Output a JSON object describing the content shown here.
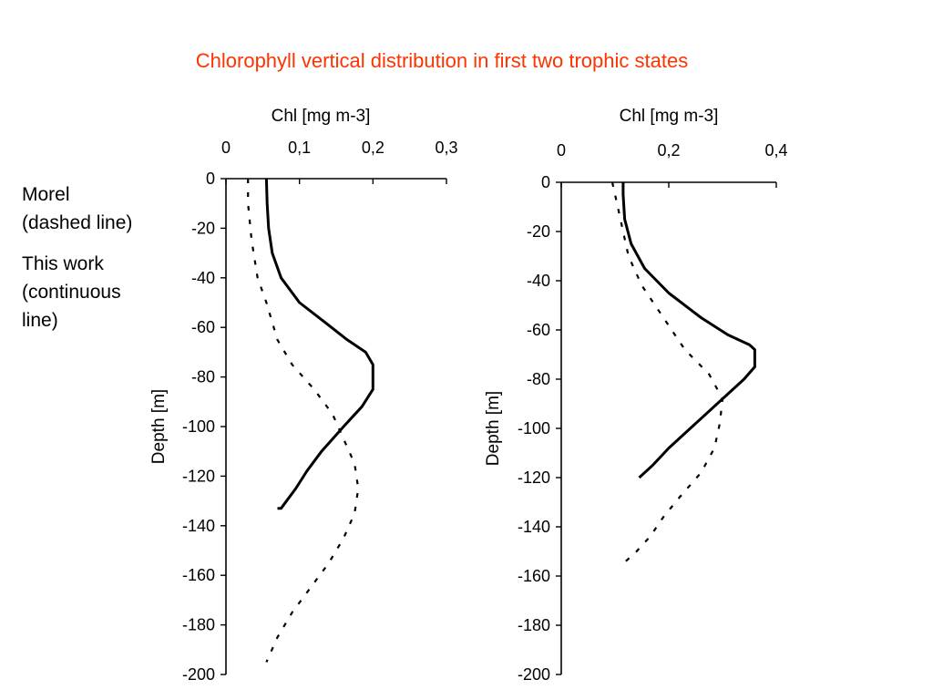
{
  "title": "Chlorophyll vertical distribution in first two trophic states",
  "notes": [
    {
      "line1": "Morel",
      "line2": "(dashed line)",
      "line3": ""
    },
    {
      "line1": "This work",
      "line2": "(continuous",
      "line3": "line)"
    }
  ],
  "chart_data": [
    {
      "type": "line",
      "xlabel": "Chl [mg m-3]",
      "ylabel": "Depth [m]",
      "xlim": [
        0,
        0.3
      ],
      "ylim": [
        -200,
        0
      ],
      "xticks": [
        0,
        0.1,
        0.2,
        0.3
      ],
      "xtick_labels": [
        "0",
        "0,1",
        "0,2",
        "0,3"
      ],
      "yticks": [
        0,
        -20,
        -40,
        -60,
        -80,
        -100,
        -120,
        -140,
        -160,
        -180,
        -200
      ],
      "ytick_labels": [
        "0",
        "-20",
        "-40",
        "-60",
        "-80",
        "-100",
        "-120",
        "-140",
        "-160",
        "-180",
        "-200"
      ],
      "x_axis_position": "top",
      "grid": false,
      "series": [
        {
          "style": "dashed",
          "x": [
            0.03,
            0.03,
            0.035,
            0.043,
            0.055,
            0.07,
            0.09,
            0.12,
            0.145,
            0.16,
            0.175,
            0.18,
            0.175,
            0.16,
            0.14,
            0.115,
            0.09,
            0.07,
            0.055
          ],
          "y": [
            0,
            -10,
            -25,
            -40,
            -50,
            -65,
            -75,
            -85,
            -95,
            -105,
            -115,
            -125,
            -135,
            -145,
            -155,
            -165,
            -175,
            -185,
            -195
          ]
        },
        {
          "style": "solid",
          "x": [
            0.055,
            0.056,
            0.058,
            0.063,
            0.075,
            0.1,
            0.135,
            0.165,
            0.19,
            0.2,
            0.2,
            0.185,
            0.16,
            0.13,
            0.11,
            0.095,
            0.08,
            0.075,
            0.07
          ],
          "y": [
            0,
            -10,
            -20,
            -30,
            -40,
            -50,
            -58,
            -65,
            -70,
            -75,
            -85,
            -92,
            -100,
            -110,
            -118,
            -125,
            -131,
            -133,
            -133
          ]
        }
      ]
    },
    {
      "type": "line",
      "xlabel": "Chl [mg m-3]",
      "ylabel": "Depth [m]",
      "xlim": [
        0,
        0.4
      ],
      "ylim": [
        -200,
        0
      ],
      "xticks": [
        0,
        0.2,
        0.4
      ],
      "xtick_labels": [
        "0",
        "0,2",
        "0,4"
      ],
      "yticks": [
        0,
        -20,
        -40,
        -60,
        -80,
        -100,
        -120,
        -140,
        -160,
        -180,
        -200
      ],
      "ytick_labels": [
        "0",
        "-20",
        "-40",
        "-60",
        "-80",
        "-100",
        "-120",
        "-140",
        "-160",
        "-180",
        "-200"
      ],
      "x_axis_position": "top",
      "grid": false,
      "series": [
        {
          "style": "dashed",
          "x": [
            0.095,
            0.105,
            0.115,
            0.125,
            0.15,
            0.19,
            0.23,
            0.275,
            0.3,
            0.295,
            0.285,
            0.26,
            0.22,
            0.19,
            0.165,
            0.14,
            0.12
          ],
          "y": [
            0,
            -10,
            -20,
            -30,
            -42,
            -55,
            -68,
            -78,
            -88,
            -98,
            -108,
            -118,
            -128,
            -136,
            -144,
            -150,
            -154
          ]
        },
        {
          "style": "solid",
          "x": [
            0.115,
            0.115,
            0.118,
            0.13,
            0.155,
            0.2,
            0.26,
            0.31,
            0.35,
            0.36,
            0.36,
            0.34,
            0.29,
            0.24,
            0.2,
            0.17,
            0.15,
            0.145
          ],
          "y": [
            0,
            -5,
            -15,
            -25,
            -35,
            -45,
            -55,
            -62,
            -66,
            -68,
            -75,
            -80,
            -90,
            -100,
            -108,
            -115,
            -119,
            -120
          ]
        }
      ]
    }
  ]
}
